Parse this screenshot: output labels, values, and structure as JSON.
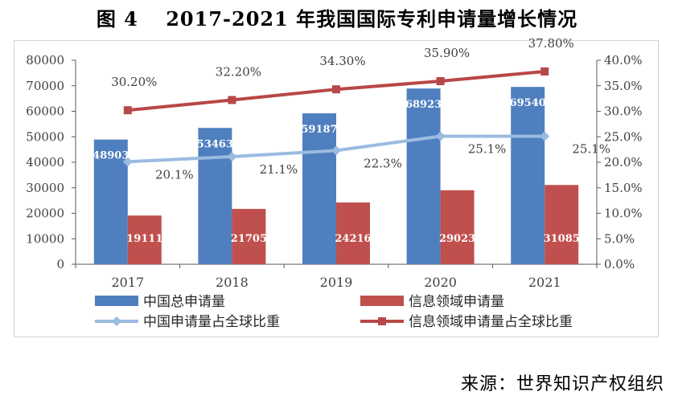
{
  "title": "图 4　 2017-2021 年我国国际专利申请量增长情况",
  "source": "来源：世界知识产权组织",
  "colors": {
    "blue": "#4f7fbf",
    "red": "#c0504d",
    "lightblue": "#9bbbe0",
    "darkred": "#b84747",
    "axis": "#595959",
    "frame": "#d4d4d4"
  },
  "chart_data": {
    "type": "bar",
    "categories": [
      "2017",
      "2018",
      "2019",
      "2020",
      "2021"
    ],
    "series": [
      {
        "name": "中国总申请量",
        "kind": "bar",
        "axis": "left",
        "color": "#4f7fbf",
        "values": [
          48903,
          53463,
          59187,
          68923,
          69540
        ],
        "labels": [
          "48903",
          "53463",
          "59187",
          "68923",
          "69540"
        ]
      },
      {
        "name": "信息领域申请量",
        "kind": "bar",
        "axis": "left",
        "color": "#c0504d",
        "values": [
          19111,
          21705,
          24216,
          29023,
          31085
        ],
        "labels": [
          "19111",
          "21705",
          "24216",
          "29023",
          "31085"
        ]
      },
      {
        "name": "中国申请量占全球比重",
        "kind": "line",
        "axis": "right",
        "color": "#9bbbe0",
        "values": [
          20.1,
          21.1,
          22.3,
          25.1,
          25.1
        ],
        "labels": [
          "20.1%",
          "21.1%",
          "22.3%",
          "25.1%",
          "25.1%"
        ]
      },
      {
        "name": "信息领域申请量占全球比重",
        "kind": "line",
        "axis": "right",
        "color": "#b84747",
        "values": [
          30.2,
          32.2,
          34.3,
          35.9,
          37.8
        ],
        "labels": [
          "30.20%",
          "32.20%",
          "34.30%",
          "35.90%",
          "37.80%"
        ]
      }
    ],
    "yleft": {
      "min": 0,
      "max": 80000,
      "ticks": [
        "0",
        "10000",
        "20000",
        "30000",
        "40000",
        "50000",
        "60000",
        "70000",
        "80000"
      ]
    },
    "yright": {
      "min": 0,
      "max": 40,
      "ticks": [
        "0.0%",
        "5.0%",
        "10.0%",
        "15.0%",
        "20.0%",
        "25.0%",
        "30.0%",
        "35.0%",
        "40.0%"
      ]
    },
    "legend": "bottom"
  }
}
